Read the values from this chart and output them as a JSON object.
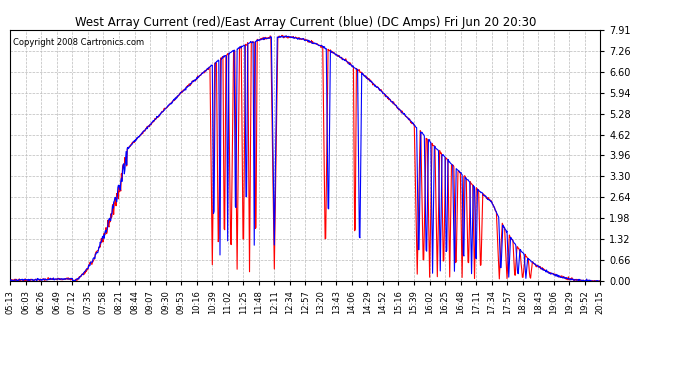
{
  "title": "West Array Current (red)/East Array Current (blue) (DC Amps) Fri Jun 20 20:30",
  "copyright": "Copyright 2008 Cartronics.com",
  "ylim": [
    0.0,
    7.91
  ],
  "yticks": [
    0.0,
    0.66,
    1.32,
    1.98,
    2.64,
    3.3,
    3.96,
    4.62,
    5.28,
    5.94,
    6.6,
    7.26,
    7.91
  ],
  "bg_color": "#ffffff",
  "plot_bg_color": "#ffffff",
  "grid_color": "#bbbbbb",
  "red_color": "#ff0000",
  "blue_color": "#0000ff",
  "x_labels": [
    "05:13",
    "06:03",
    "06:26",
    "06:49",
    "07:12",
    "07:35",
    "07:58",
    "08:21",
    "08:44",
    "09:07",
    "09:30",
    "09:53",
    "10:16",
    "10:39",
    "11:02",
    "11:25",
    "11:48",
    "12:11",
    "12:34",
    "12:57",
    "13:20",
    "13:43",
    "14:06",
    "14:29",
    "14:52",
    "15:16",
    "15:39",
    "16:02",
    "16:25",
    "16:48",
    "17:11",
    "17:34",
    "17:57",
    "18:20",
    "18:43",
    "19:06",
    "19:29",
    "19:52",
    "20:15"
  ]
}
